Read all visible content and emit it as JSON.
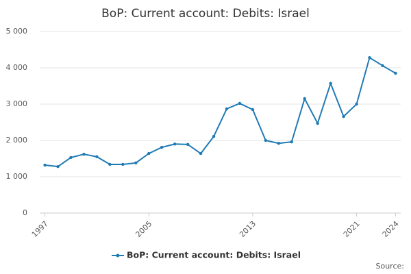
{
  "chart_data": {
    "type": "line",
    "title": "BoP: Current account: Debits: Israel",
    "x": [
      1997,
      1998,
      1999,
      2000,
      2001,
      2002,
      2003,
      2004,
      2005,
      2006,
      2007,
      2008,
      2009,
      2010,
      2011,
      2012,
      2013,
      2014,
      2015,
      2016,
      2017,
      2018,
      2019,
      2020,
      2021,
      2022,
      2023,
      2024
    ],
    "series": [
      {
        "name": "BoP: Current account: Debits: Israel",
        "color": "#1f7ab4",
        "values": [
          1320,
          1280,
          1530,
          1620,
          1550,
          1340,
          1340,
          1380,
          1640,
          1810,
          1900,
          1890,
          1640,
          2110,
          2870,
          3020,
          2850,
          2000,
          1920,
          1960,
          3150,
          2470,
          3570,
          2660,
          3000,
          4280,
          4060,
          3850
        ]
      }
    ],
    "xlim": [
      1996.6,
      2024.4
    ],
    "xticks": [
      1997,
      2005,
      2013,
      2021,
      2024
    ],
    "ylim": [
      0,
      5000
    ],
    "yticks": [
      0,
      {
        "value": 1000,
        "label": "1 000"
      },
      {
        "value": 2000,
        "label": "2 000"
      },
      {
        "value": 3000,
        "label": "3 000"
      },
      {
        "value": 4000,
        "label": "4 000"
      },
      {
        "value": 5000,
        "label": "5 000"
      }
    ],
    "grid": true,
    "legend": "bottom",
    "source": "Source:"
  }
}
